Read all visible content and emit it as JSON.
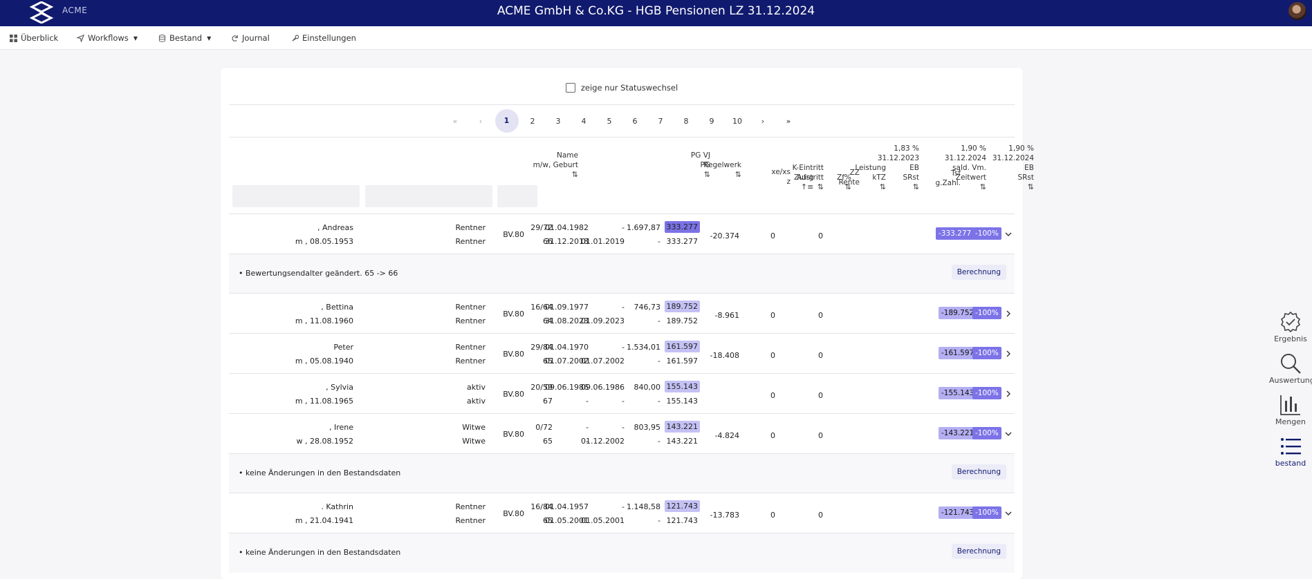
{
  "app": {
    "logo_text": "ACME",
    "title": "ACME GmbH & Co.KG - HGB Pensionen LZ 31.12.2024"
  },
  "nav": [
    {
      "label": "Überblick",
      "icon": "grid-icon"
    },
    {
      "label": "Workflows",
      "icon": "send-icon"
    },
    {
      "label": "Bestand",
      "icon": "database-icon"
    },
    {
      "label": "Journal",
      "icon": "refresh-icon"
    },
    {
      "label": "Einstellungen",
      "icon": "wrench-icon"
    }
  ],
  "filter_toggle": "zeige nur Statuswechsel",
  "pagination": {
    "pages": [
      "1",
      "2",
      "3",
      "4",
      "5",
      "6",
      "7",
      "8",
      "9",
      "10"
    ],
    "current": "1",
    "first": "«",
    "prev": "‹",
    "next": "›",
    "last": "»"
  },
  "headers": {
    "name": [
      "Name",
      "m/w, Geburt"
    ],
    "pg": [
      "PG VJ",
      "PG"
    ],
    "regelwerk": [
      "Regelwerk"
    ],
    "xexs": [
      "xe/xs",
      "z"
    ],
    "eintritt": [
      "K-Eintritt",
      "Austritt"
    ],
    "zz": [
      "ZZ",
      "Rente"
    ],
    "leistung": [
      "Leistung",
      "kTZ"
    ],
    "eb2023": [
      "1,83 %",
      "31.12.2023",
      "EB",
      "SRst"
    ],
    "tsf": [
      "Tsf",
      "g.Zahl."
    ],
    "zeitwert": [
      "1,90 %",
      "31.12.2024",
      "sald. Vm.",
      "Zeitwert"
    ],
    "eb2024": [
      "1,90 %",
      "31.12.2024",
      "EB",
      "SRst"
    ],
    "zufrg": [
      "Zufrg"
    ],
    "zf": [
      "Zf%"
    ],
    "sort": "⇅",
    "sort_desc": "↑≡"
  },
  "rows": [
    {
      "name": ", Andreas",
      "sub": "m , 08.05.1953",
      "pgvj": "Rentner",
      "pg": "Rentner",
      "rw": "BV.80",
      "xe": "29/72",
      "z": "66",
      "ke": "01.04.1982",
      "aus": "31.12.2018",
      "zz": "-",
      "rente": "01.01.2019",
      "leist": "1.697,87",
      "ktz": "-",
      "eb1": "333.277",
      "eb2": "333.277",
      "tsf": "-20.374",
      "zw": "0",
      "eb24": "0",
      "zufrg": "-333.277",
      "zf": "-100%",
      "expanded": true,
      "detail": "• Bewertungsendalter geändert. 65 -> 66"
    },
    {
      "name": ", Bettina",
      "sub": "m , 11.08.1960",
      "pgvj": "Rentner",
      "pg": "Rentner",
      "rw": "BV.80",
      "xe": "16/64",
      "z": "64",
      "ke": "01.09.1977",
      "aus": "31.08.2023",
      "zz": "-",
      "rente": "01.09.2023",
      "leist": "746,73",
      "ktz": "-",
      "eb1": "189.752",
      "eb2": "189.752",
      "tsf": "-8.961",
      "zw": "0",
      "eb24": "0",
      "zufrg": "-189.752",
      "zf": "-100%",
      "expanded": false,
      "detail": ""
    },
    {
      "name": "Peter",
      "sub": "m , 05.08.1940",
      "pgvj": "Rentner",
      "pg": "Rentner",
      "rw": "BV.80",
      "xe": "29/84",
      "z": "65",
      "ke": "01.04.1970",
      "aus": "01.07.2002",
      "zz": "-",
      "rente": "01.07.2002",
      "leist": "1.534,01",
      "ktz": "-",
      "eb1": "161.597",
      "eb2": "161.597",
      "tsf": "-18.408",
      "zw": "0",
      "eb24": "0",
      "zufrg": "-161.597",
      "zf": "-100%",
      "expanded": false,
      "detail": ""
    },
    {
      "name": ", Sylvia",
      "sub": "m , 11.08.1965",
      "pgvj": "aktiv",
      "pg": "aktiv",
      "rw": "BV.80",
      "xe": "20/59",
      "z": "67",
      "ke": "09.06.1986",
      "aus": "-",
      "zz": "09.06.1986",
      "rente": "-",
      "leist": "840,00",
      "ktz": "-",
      "eb1": "155.143",
      "eb2": "155.143",
      "tsf": "",
      "zw": "0",
      "eb24": "0",
      "zufrg": "-155.143",
      "zf": "-100%",
      "expanded": false,
      "detail": ""
    },
    {
      "name": ", Irene",
      "sub": "w , 28.08.1952",
      "pgvj": "Witwe",
      "pg": "Witwe",
      "rw": "BV.80",
      "xe": "0/72",
      "z": "65",
      "ke": "-",
      "aus": "-",
      "zz": "-",
      "rente": "01.12.2002",
      "leist": "803,95",
      "ktz": "-",
      "eb1": "143.221",
      "eb2": "143.221",
      "tsf": "-4.824",
      "zw": "0",
      "eb24": "0",
      "zufrg": "-143.221",
      "zf": "-100%",
      "expanded": true,
      "detail": "• keine Änderungen in den Bestandsdaten"
    },
    {
      "name": ". Kathrin",
      "sub": "m , 21.04.1941",
      "pgvj": "Rentner",
      "pg": "Rentner",
      "rw": "BV.80",
      "xe": "16/84",
      "z": "65",
      "ke": "01.04.1957",
      "aus": "01.05.2001",
      "zz": "-",
      "rente": "01.05.2001",
      "leist": "1.148,58",
      "ktz": "-",
      "eb1": "121.743",
      "eb2": "121.743",
      "tsf": "-13.783",
      "zw": "0",
      "eb24": "0",
      "zufrg": "-121.743",
      "zf": "-100%",
      "expanded": true,
      "detail": "• keine Änderungen in den Bestandsdaten"
    }
  ],
  "detail_button": "Berechnung",
  "sidebar": [
    {
      "label": "Ergebnis",
      "icon": "check-badge-icon"
    },
    {
      "label": "Auswertung",
      "icon": "magnifier-icon"
    },
    {
      "label": "Mengen",
      "icon": "bar-chart-icon"
    },
    {
      "label": "bestand",
      "icon": "list-icon"
    }
  ],
  "colors": {
    "header": "#101a6e",
    "highlight": "#a9a4ee",
    "badge_dark": "#7c73e8",
    "badge_light": "#b4aff2"
  }
}
